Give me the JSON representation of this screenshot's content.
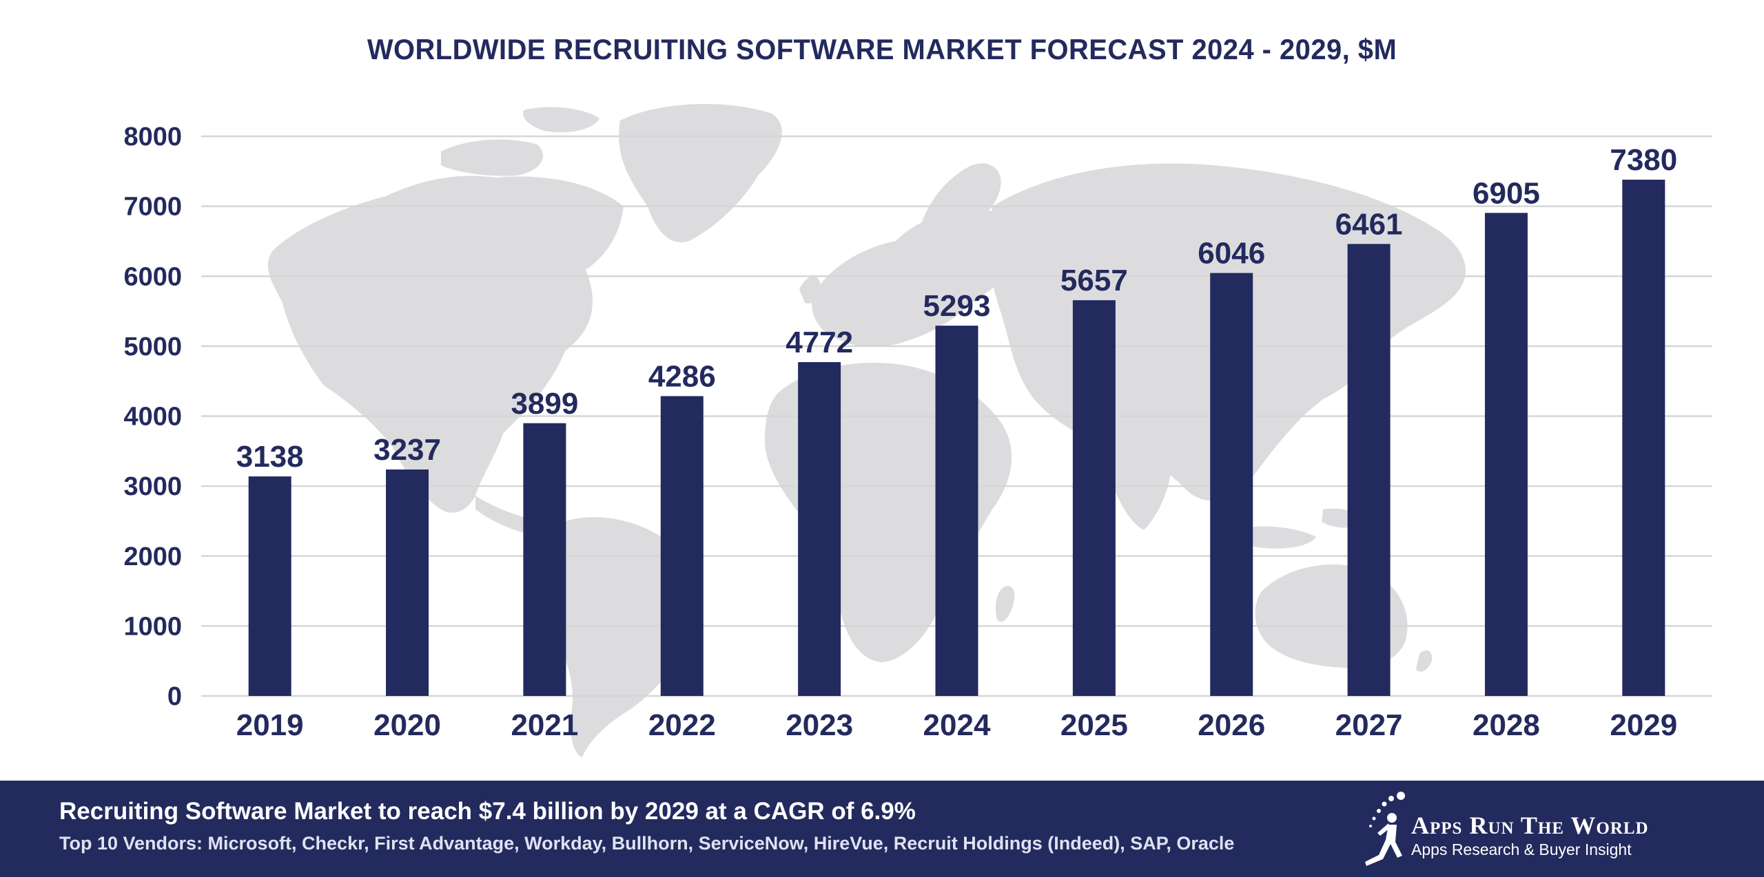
{
  "chart_data": {
    "type": "bar",
    "title": "WORLDWIDE RECRUITING SOFTWARE MARKET FORECAST 2024 - 2029, $M",
    "xlabel": "",
    "ylabel": "",
    "categories": [
      "2019",
      "2020",
      "2021",
      "2022",
      "2023",
      "2024",
      "2025",
      "2026",
      "2027",
      "2028",
      "2029"
    ],
    "values": [
      3138,
      3237,
      3899,
      4286,
      4772,
      5293,
      5657,
      6046,
      6461,
      6905,
      7380
    ],
    "data_labels": [
      "3138",
      "3237",
      "3899",
      "4286",
      "4772",
      "5293",
      "5657",
      "6046",
      "6461",
      "6905",
      "7380"
    ],
    "ylim": [
      0,
      8000
    ],
    "yticks": [
      0,
      1000,
      2000,
      3000,
      4000,
      5000,
      6000,
      7000,
      8000
    ],
    "ytick_labels": [
      "0",
      "1000",
      "2000",
      "3000",
      "4000",
      "5000",
      "6000",
      "7000",
      "8000"
    ],
    "grid": true,
    "legend": "none",
    "background": "world map silhouette"
  },
  "colors": {
    "bar": "#232a5e",
    "text": "#232a5e",
    "grid": "#d6d6d6",
    "map": "#dcdcde",
    "footer_bg": "#232a5e",
    "footer_text": "#ffffff"
  },
  "footer": {
    "headline": "Recruiting Software Market to reach $7.4 billion by 2029 at a CAGR of 6.9%",
    "vendors": "Top 10 Vendors: Microsoft, Checkr, First Advantage, Workday, Bullhorn, ServiceNow, HireVue, Recruit Holdings (Indeed), SAP, Oracle"
  },
  "logo": {
    "name": "Apps Run The World",
    "tagline": "Apps Research & Buyer Insight",
    "icon": "running-figure-icon"
  }
}
